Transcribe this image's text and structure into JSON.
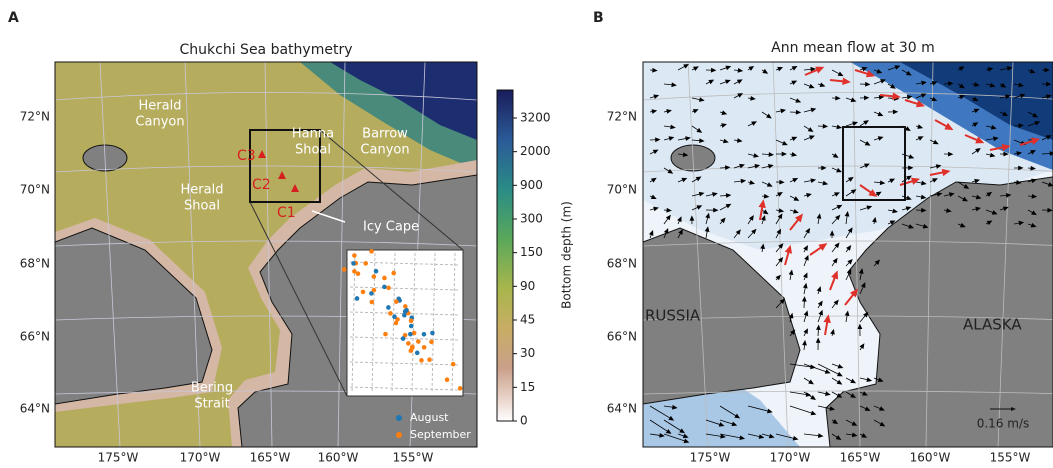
{
  "panel_a": {
    "letter": "A",
    "title": "Chukchi Sea bathymetry",
    "lat_labels": [
      "72°N",
      "70°N",
      "68°N",
      "66°N",
      "64°N"
    ],
    "lon_labels": [
      "175°W",
      "170°W",
      "165°W",
      "160°W",
      "155°W"
    ],
    "herald_canyon": [
      "Herald",
      "Canyon"
    ],
    "hanna_shoal": [
      "Hanna",
      "Shoal"
    ],
    "barrow_canyon": [
      "Barrow",
      "Canyon"
    ],
    "herald_shoal": [
      "Herald",
      "Shoal"
    ],
    "bering_strait": [
      "Bering",
      "Strait"
    ],
    "icy_cape": "Icy Cape",
    "stations": [
      "C3",
      "C2",
      "C1"
    ],
    "colorbar": {
      "label": "Bottom depth (m)",
      "ticks": [
        "3200",
        "2000",
        "900",
        "300",
        "150",
        "90",
        "45",
        "30",
        "15",
        "0"
      ]
    },
    "legend": [
      "August",
      "September"
    ]
  },
  "panel_b": {
    "letter": "B",
    "title": "Ann mean flow at 30 m",
    "lat_labels": [
      "72°N",
      "70°N",
      "68°N",
      "66°N",
      "64°N"
    ],
    "lon_labels": [
      "175°W",
      "170°W",
      "165°W",
      "160°W",
      "155°W"
    ],
    "russia": "RUSSIA",
    "alaska": "ALASKA",
    "scale": "0.16 m/s"
  }
}
